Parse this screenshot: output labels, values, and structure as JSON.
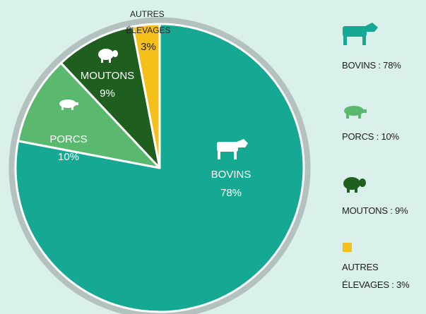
{
  "chart_data": {
    "type": "pie",
    "categories": [
      "BOVINS",
      "PORCS",
      "MOUTONS",
      "AUTRES ÉLEVAGES"
    ],
    "values": [
      78,
      10,
      9,
      3
    ],
    "value_labels": [
      "78%",
      "10%",
      "9%",
      "3%"
    ],
    "colors": [
      "#15a993",
      "#5bb86f",
      "#1f5e1f",
      "#f6c01a"
    ],
    "legend_labels": [
      "BOVINS : 78%",
      "PORCS : 10%",
      "MOUTONS : 9%",
      "AUTRES ÉLEVAGES : 3%"
    ]
  }
}
